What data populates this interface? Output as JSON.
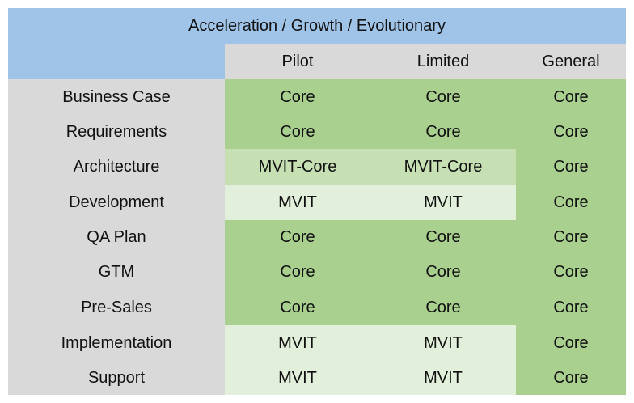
{
  "title": "Acceleration / Growth / Evolutionary",
  "columns": [
    "Pilot",
    "Limited",
    "General"
  ],
  "rows": [
    {
      "label": "Business Case",
      "cells": [
        "Core",
        "Core",
        "Core"
      ]
    },
    {
      "label": "Requirements",
      "cells": [
        "Core",
        "Core",
        "Core"
      ]
    },
    {
      "label": "Architecture",
      "cells": [
        "MVIT-Core",
        "MVIT-Core",
        "Core"
      ]
    },
    {
      "label": "Development",
      "cells": [
        "MVIT",
        "MVIT",
        "Core"
      ]
    },
    {
      "label": "QA Plan",
      "cells": [
        "Core",
        "Core",
        "Core"
      ]
    },
    {
      "label": "GTM",
      "cells": [
        "Core",
        "Core",
        "Core"
      ]
    },
    {
      "label": "Pre-Sales",
      "cells": [
        "Core",
        "Core",
        "Core"
      ]
    },
    {
      "label": "Implementation",
      "cells": [
        "MVIT",
        "MVIT",
        "Core"
      ]
    },
    {
      "label": "Support",
      "cells": [
        "MVIT",
        "MVIT",
        "Core"
      ]
    }
  ],
  "colors": {
    "header_blue": "#9fc4e8",
    "label_gray": "#d9d9d9",
    "core_green": "#a9d08e",
    "mvit_core_green": "#c6e0b4",
    "mvit_green": "#e2efda"
  }
}
